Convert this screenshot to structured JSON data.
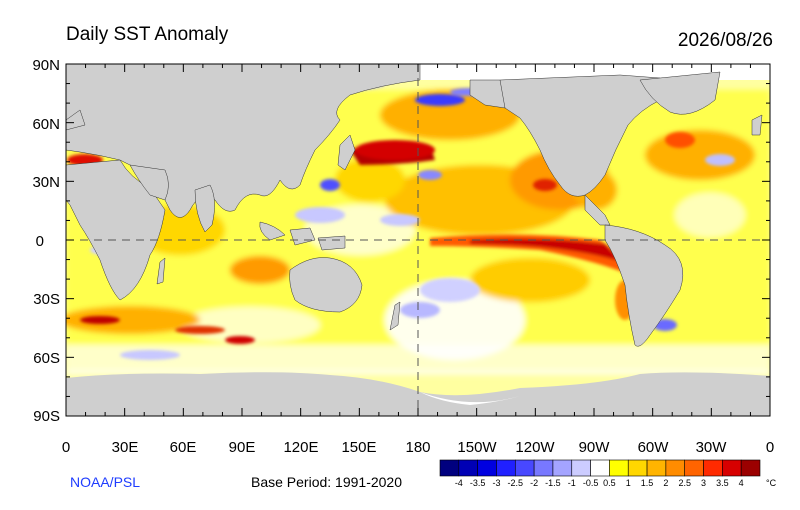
{
  "title": "Daily SST Anomaly",
  "date": "2026/08/26",
  "credit": "NOAA/PSL",
  "base_period": "Base Period: 1991-2020",
  "axes": {
    "lat_labels": [
      "90N",
      "60N",
      "30N",
      "0",
      "30S",
      "60S",
      "90S"
    ],
    "lon_labels": [
      "0",
      "30E",
      "60E",
      "90E",
      "120E",
      "150E",
      "180",
      "150W",
      "120W",
      "90W",
      "60W",
      "30W",
      "0"
    ]
  },
  "colorbar": {
    "unit": "°C",
    "labels": [
      "-4",
      "-3.5",
      "-3",
      "-2.5",
      "-2",
      "-1.5",
      "-1",
      "-0.5",
      "0.5",
      "1",
      "1.5",
      "2",
      "2.5",
      "3",
      "3.5",
      "4"
    ],
    "colors": [
      "#00007f",
      "#0000b5",
      "#0000e0",
      "#2020ff",
      "#4848ff",
      "#7878ff",
      "#a4a4ff",
      "#ccccff",
      "#ffffff",
      "#ffff00",
      "#ffd700",
      "#ffb400",
      "#ff8c00",
      "#ff6400",
      "#ff2a00",
      "#d70000",
      "#9b0000"
    ]
  },
  "colors": {
    "land": "#cfcfcf",
    "ice": "#ffffff",
    "warm_light": "#ffff40",
    "warm_mid": "#ffc400",
    "warm_strong": "#ff7a00",
    "hot": "#d40000",
    "very_hot": "#9a0000",
    "cool_light": "#c8c8ff",
    "cool_mid": "#6f6fff"
  }
}
